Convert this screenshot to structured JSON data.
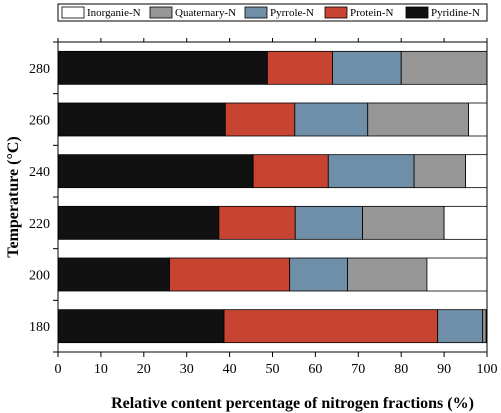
{
  "chart_data": {
    "type": "bar",
    "orientation": "horizontal",
    "stacked": true,
    "xlabel": "Relative content percentage of nitrogen fractions (%)",
    "ylabel": "Temperature (°C)",
    "xlim": [
      0,
      100
    ],
    "x_ticks": [
      0,
      10,
      20,
      30,
      40,
      50,
      60,
      70,
      80,
      90,
      100
    ],
    "categories": [
      "280",
      "260",
      "240",
      "220",
      "200",
      "180"
    ],
    "grid": false,
    "legend_position": "top",
    "legend_order": [
      "Inorganic-N",
      "Quaternary-N",
      "Pyrrole-N",
      "Protein-N",
      "Pyridine-N"
    ],
    "series": [
      {
        "name": "Pyridine-N",
        "color": "#111111",
        "values": [
          48.8,
          39.0,
          45.5,
          37.5,
          26.0,
          38.7
        ]
      },
      {
        "name": "Protein-N",
        "color": "#c84432",
        "values": [
          15.2,
          16.2,
          17.5,
          17.8,
          28.0,
          49.8
        ]
      },
      {
        "name": "Pyrrole-N",
        "color": "#6f8ea8",
        "values": [
          16.0,
          17.0,
          20.0,
          15.7,
          13.5,
          10.5
        ]
      },
      {
        "name": "Quaternary-N",
        "color": "#969696",
        "values": [
          20.0,
          23.5,
          12.0,
          19.0,
          18.5,
          0.8
        ]
      },
      {
        "name": "Inorganic-N",
        "color": "#ffffff",
        "values": [
          0.0,
          4.3,
          5.0,
          10.0,
          14.0,
          0.2
        ]
      }
    ],
    "legend_labels": {
      "Inorganic-N": "Inorganie-N",
      "Quaternary-N": "Quaternary-N",
      "Pyrrole-N": "Pyrrole-N",
      "Protein-N": "Protein-N",
      "Pyridine-N": "Pyridine-N"
    }
  }
}
